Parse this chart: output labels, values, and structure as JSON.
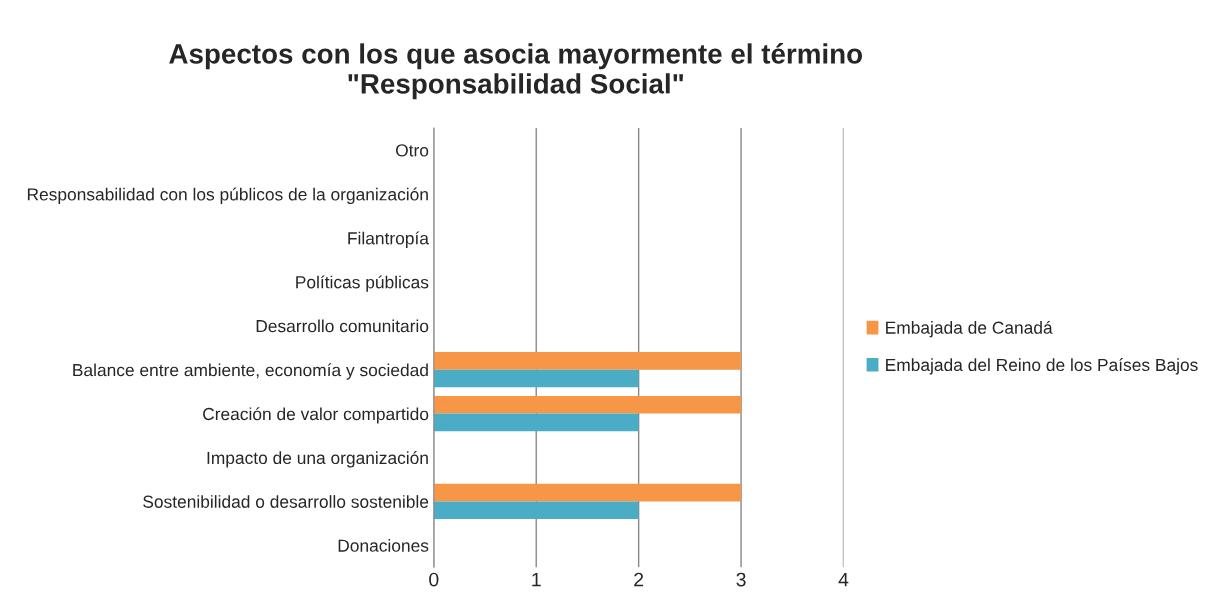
{
  "chart_data": {
    "type": "bar",
    "orientation": "horizontal",
    "title": "Aspectos con los que asocia mayormente el término\n\"Responsabilidad Social\"",
    "categories": [
      "Otro",
      "Responsabilidad con los públicos de la organización",
      "Filantropía",
      "Políticas públicas",
      "Desarrollo comunitario",
      "Balance entre ambiente, economía y sociedad",
      "Creación de valor compartido",
      "Impacto de una organización",
      "Sostenibilidad o desarrollo sostenible",
      "Donaciones"
    ],
    "series": [
      {
        "name": "Embajada de Canadá",
        "color": "#f79646",
        "values": [
          0,
          0,
          0,
          0,
          0,
          3,
          3,
          0,
          3,
          0
        ]
      },
      {
        "name": "Embajada del Reino de los Países Bajos",
        "color": "#4bacc6",
        "values": [
          0,
          0,
          0,
          0,
          0,
          2,
          2,
          0,
          2,
          0
        ]
      }
    ],
    "xlim": [
      0,
      4
    ],
    "xticks": [
      0,
      1,
      2,
      3,
      4
    ],
    "grid": "x",
    "legend": "right"
  }
}
